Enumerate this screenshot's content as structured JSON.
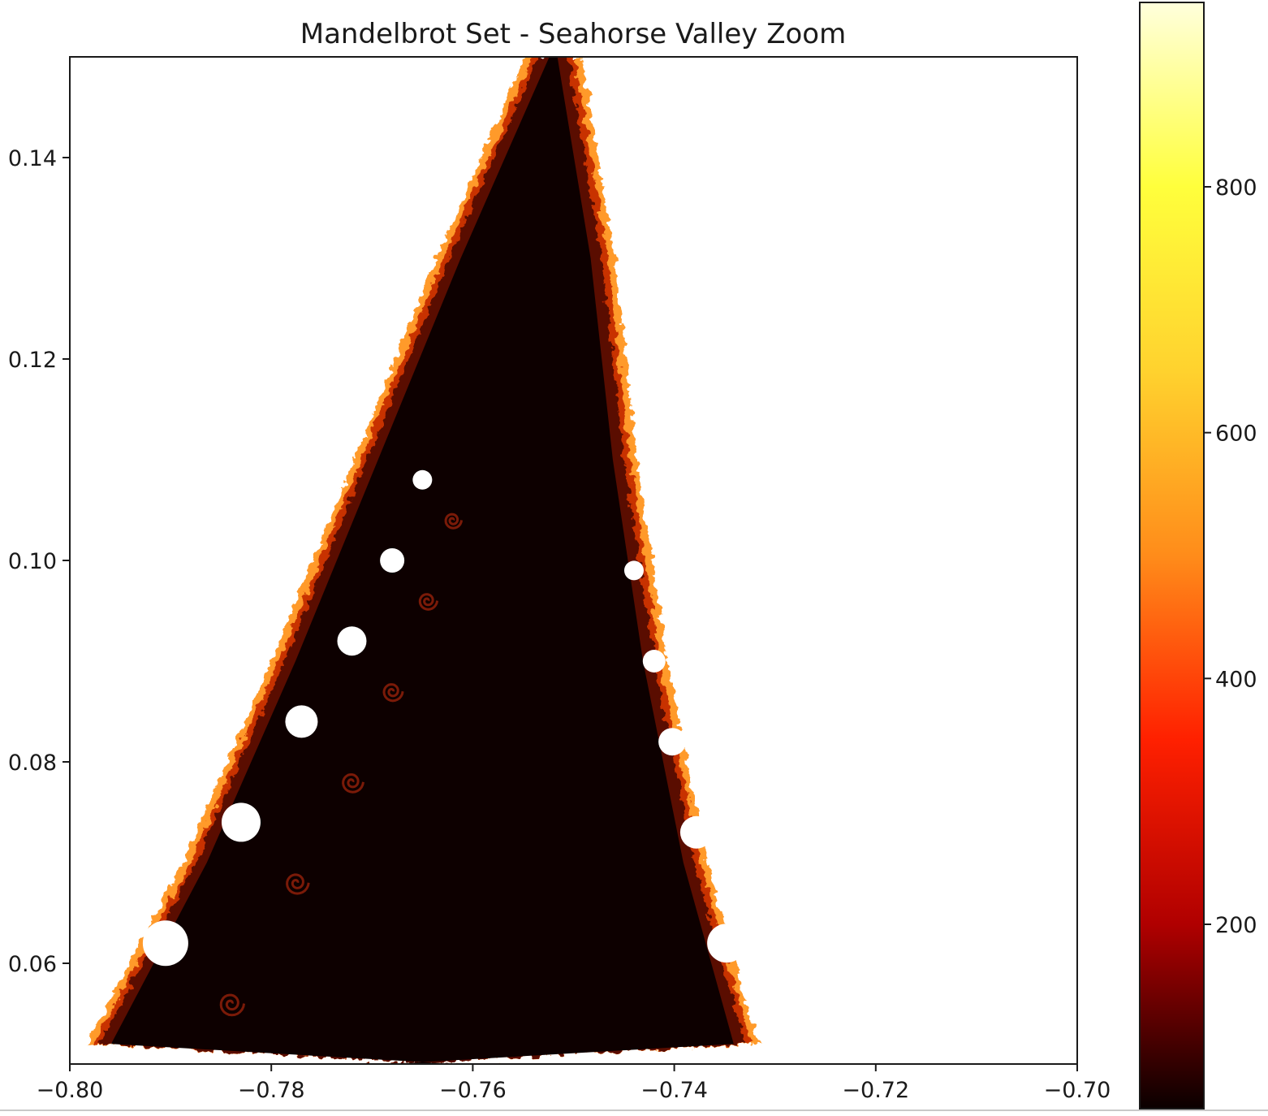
{
  "chart_data": [
    {
      "type": "heatmap",
      "title": "Mandelbrot Set - Seahorse Valley Zoom",
      "xlabel": "",
      "ylabel": "",
      "xlim": [
        -0.8,
        -0.7
      ],
      "ylim": [
        0.05,
        0.15
      ],
      "x_ticks": [
        "−0.80",
        "−0.78",
        "−0.76",
        "−0.74",
        "−0.72",
        "−0.70"
      ],
      "x_tick_values": [
        -0.8,
        -0.78,
        -0.76,
        -0.74,
        -0.72,
        -0.7
      ],
      "y_ticks": [
        "0.06",
        "0.08",
        "0.10",
        "0.12",
        "0.14"
      ],
      "y_tick_values": [
        0.06,
        0.08,
        0.1,
        0.12,
        0.14
      ],
      "value": "escape iteration count (points that escape quickly are white; the set interior is dark)",
      "colormap": "hot",
      "grid": false,
      "colorbar": {
        "range": [
          50,
          950
        ],
        "ticks": [
          "200",
          "400",
          "600",
          "800"
        ],
        "tick_values": [
          200,
          400,
          600,
          800
        ],
        "colors": [
          "#0a0000",
          "#b00000",
          "#ff2000",
          "#ff8c1a",
          "#ffd22e",
          "#ffff3c",
          "#ffffdc"
        ]
      },
      "colors": {
        "interior": "#0d0000",
        "edge_dark": "#5a0a00",
        "edge_mid": "#c83200",
        "edge_bright": "#ff9a2a",
        "outside": "#ffffff",
        "axis": "#1a1a1a"
      }
    }
  ]
}
